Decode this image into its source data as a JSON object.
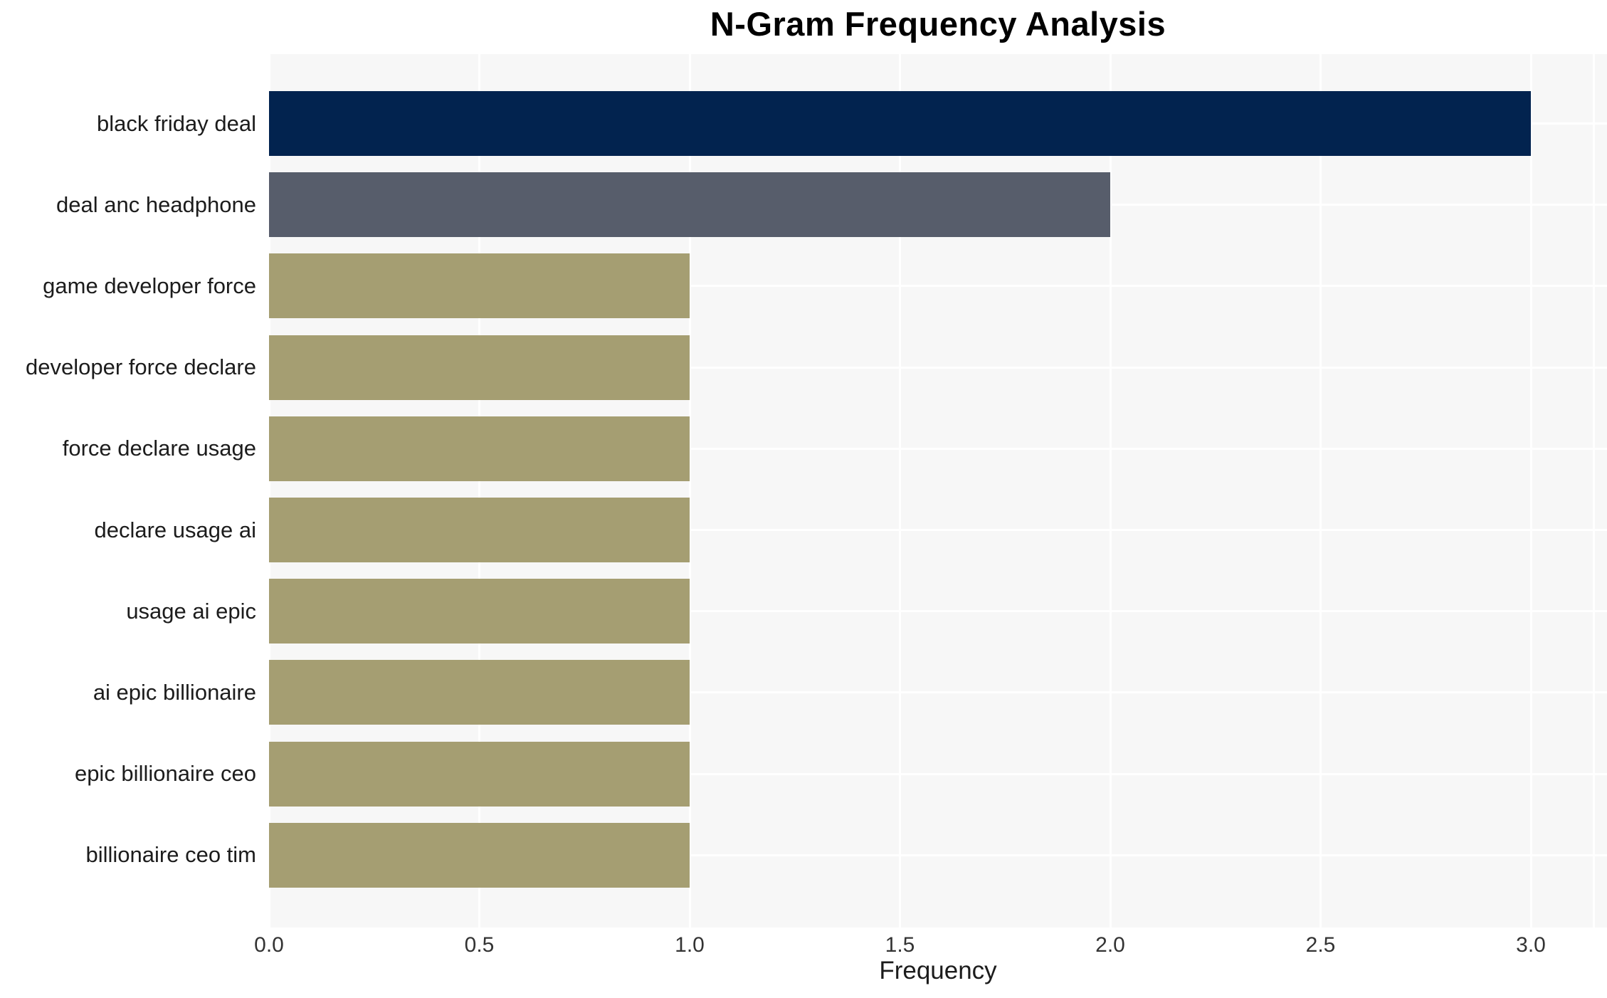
{
  "chart_data": {
    "type": "bar",
    "orientation": "horizontal",
    "title": "N-Gram Frequency Analysis",
    "xlabel": "Frequency",
    "ylabel": "",
    "categories": [
      "black friday deal",
      "deal anc headphone",
      "game developer force",
      "developer force declare",
      "force declare usage",
      "declare usage ai",
      "usage ai epic",
      "ai epic billionaire",
      "epic billionaire ceo",
      "billionaire ceo tim"
    ],
    "values": [
      3,
      2,
      1,
      1,
      1,
      1,
      1,
      1,
      1,
      1
    ],
    "bar_colors": [
      "#02234F",
      "#575D6B",
      "#A59E72",
      "#A59E72",
      "#A59E72",
      "#A59E72",
      "#A59E72",
      "#A59E72",
      "#A59E72",
      "#A59E72"
    ],
    "xlim": [
      0,
      3.18
    ],
    "xticks": [
      {
        "value": 0.0,
        "label": "0.0"
      },
      {
        "value": 0.5,
        "label": "0.5"
      },
      {
        "value": 1.0,
        "label": "1.0"
      },
      {
        "value": 1.5,
        "label": "1.5"
      },
      {
        "value": 2.0,
        "label": "2.0"
      },
      {
        "value": 2.5,
        "label": "2.5"
      },
      {
        "value": 3.0,
        "label": "3.0"
      }
    ],
    "grid": true,
    "legend": false,
    "colors": {
      "figure_bg": "#FFFFFF",
      "plot_bg": "#F7F7F7",
      "gridline": "#FFFFFF",
      "title_text": "#000000",
      "category_label_text": "#1C1C1C",
      "tick_label_text": "#333333"
    }
  }
}
